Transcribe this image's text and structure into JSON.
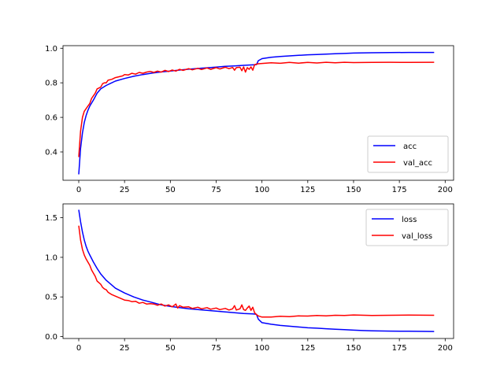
{
  "chart_data": [
    {
      "type": "line",
      "title": "",
      "xlabel": "",
      "ylabel": "",
      "xlim": [
        -8.6,
        204.6
      ],
      "ylim": [
        0.236,
        1.015
      ],
      "xticks": [
        0,
        25,
        50,
        75,
        100,
        125,
        150,
        175,
        200
      ],
      "yticks": [
        0.4,
        0.6,
        0.8,
        1.0
      ],
      "ytick_labels": [
        "0.4",
        "0.6",
        "0.8",
        "1.0"
      ],
      "grid": false,
      "legend_position": "lower-right",
      "series": [
        {
          "name": "acc",
          "color": "#0000ff",
          "points": [
            [
              0,
              0.27
            ],
            [
              1,
              0.42
            ],
            [
              2,
              0.51
            ],
            [
              3,
              0.57
            ],
            [
              4,
              0.61
            ],
            [
              5,
              0.64
            ],
            [
              6,
              0.665
            ],
            [
              8,
              0.7
            ],
            [
              10,
              0.74
            ],
            [
              12,
              0.765
            ],
            [
              15,
              0.785
            ],
            [
              18,
              0.8
            ],
            [
              20,
              0.81
            ],
            [
              25,
              0.825
            ],
            [
              30,
              0.838
            ],
            [
              35,
              0.848
            ],
            [
              40,
              0.856
            ],
            [
              45,
              0.863
            ],
            [
              50,
              0.868
            ],
            [
              55,
              0.874
            ],
            [
              60,
              0.879
            ],
            [
              65,
              0.883
            ],
            [
              70,
              0.887
            ],
            [
              75,
              0.891
            ],
            [
              80,
              0.895
            ],
            [
              85,
              0.898
            ],
            [
              90,
              0.901
            ],
            [
              95,
              0.904
            ],
            [
              97,
              0.905
            ],
            [
              98,
              0.928
            ],
            [
              100,
              0.94
            ],
            [
              105,
              0.948
            ],
            [
              110,
              0.952
            ],
            [
              115,
              0.956
            ],
            [
              120,
              0.959
            ],
            [
              125,
              0.962
            ],
            [
              130,
              0.964
            ],
            [
              135,
              0.966
            ],
            [
              140,
              0.968
            ],
            [
              145,
              0.97
            ],
            [
              150,
              0.972
            ],
            [
              160,
              0.974
            ],
            [
              170,
              0.975
            ],
            [
              180,
              0.976
            ],
            [
              194,
              0.976
            ]
          ]
        },
        {
          "name": "val_acc",
          "color": "#ff0000",
          "points": [
            [
              0,
              0.37
            ],
            [
              1,
              0.52
            ],
            [
              2,
              0.6
            ],
            [
              3,
              0.635
            ],
            [
              4,
              0.65
            ],
            [
              5,
              0.665
            ],
            [
              6,
              0.68
            ],
            [
              7,
              0.71
            ],
            [
              8,
              0.725
            ],
            [
              9,
              0.74
            ],
            [
              10,
              0.765
            ],
            [
              11,
              0.77
            ],
            [
              12,
              0.775
            ],
            [
              13,
              0.795
            ],
            [
              14,
              0.8
            ],
            [
              15,
              0.8
            ],
            [
              16,
              0.815
            ],
            [
              18,
              0.82
            ],
            [
              20,
              0.83
            ],
            [
              22,
              0.835
            ],
            [
              24,
              0.84
            ],
            [
              25,
              0.848
            ],
            [
              27,
              0.845
            ],
            [
              29,
              0.855
            ],
            [
              31,
              0.85
            ],
            [
              33,
              0.86
            ],
            [
              35,
              0.855
            ],
            [
              37,
              0.862
            ],
            [
              39,
              0.866
            ],
            [
              41,
              0.86
            ],
            [
              43,
              0.868
            ],
            [
              45,
              0.862
            ],
            [
              47,
              0.872
            ],
            [
              49,
              0.865
            ],
            [
              51,
              0.874
            ],
            [
              53,
              0.868
            ],
            [
              55,
              0.878
            ],
            [
              57,
              0.872
            ],
            [
              60,
              0.882
            ],
            [
              62,
              0.875
            ],
            [
              65,
              0.884
            ],
            [
              67,
              0.877
            ],
            [
              70,
              0.886
            ],
            [
              72,
              0.878
            ],
            [
              75,
              0.888
            ],
            [
              77,
              0.88
            ],
            [
              80,
              0.89
            ],
            [
              82,
              0.882
            ],
            [
              84,
              0.889
            ],
            [
              85,
              0.873
            ],
            [
              86,
              0.888
            ],
            [
              88,
              0.89
            ],
            [
              89,
              0.87
            ],
            [
              90,
              0.892
            ],
            [
              91,
              0.862
            ],
            [
              92,
              0.888
            ],
            [
              93,
              0.878
            ],
            [
              94,
              0.892
            ],
            [
              95,
              0.873
            ],
            [
              96,
              0.905
            ],
            [
              97,
              0.908
            ],
            [
              98,
              0.91
            ],
            [
              100,
              0.912
            ],
            [
              105,
              0.916
            ],
            [
              110,
              0.913
            ],
            [
              115,
              0.918
            ],
            [
              120,
              0.914
            ],
            [
              125,
              0.918
            ],
            [
              130,
              0.915
            ],
            [
              135,
              0.919
            ],
            [
              140,
              0.916
            ],
            [
              145,
              0.919
            ],
            [
              150,
              0.917
            ],
            [
              160,
              0.918
            ],
            [
              170,
              0.919
            ],
            [
              180,
              0.918
            ],
            [
              194,
              0.919
            ]
          ]
        }
      ]
    },
    {
      "type": "line",
      "title": "",
      "xlabel": "",
      "ylabel": "",
      "xlim": [
        -8.6,
        204.6
      ],
      "ylim": [
        -0.025,
        1.675
      ],
      "xticks": [
        0,
        25,
        50,
        75,
        100,
        125,
        150,
        175,
        200
      ],
      "yticks": [
        0.0,
        0.5,
        1.0,
        1.5
      ],
      "ytick_labels": [
        "0.0",
        "0.5",
        "1.0",
        "1.5"
      ],
      "grid": false,
      "legend_position": "upper-right",
      "series": [
        {
          "name": "loss",
          "color": "#0000ff",
          "points": [
            [
              0,
              1.6
            ],
            [
              1,
              1.45
            ],
            [
              2,
              1.32
            ],
            [
              3,
              1.22
            ],
            [
              4,
              1.14
            ],
            [
              5,
              1.08
            ],
            [
              6,
              1.03
            ],
            [
              8,
              0.94
            ],
            [
              10,
              0.86
            ],
            [
              12,
              0.79
            ],
            [
              15,
              0.71
            ],
            [
              18,
              0.65
            ],
            [
              20,
              0.61
            ],
            [
              25,
              0.55
            ],
            [
              30,
              0.5
            ],
            [
              35,
              0.46
            ],
            [
              40,
              0.43
            ],
            [
              45,
              0.4
            ],
            [
              50,
              0.38
            ],
            [
              55,
              0.365
            ],
            [
              60,
              0.35
            ],
            [
              65,
              0.34
            ],
            [
              70,
              0.33
            ],
            [
              75,
              0.32
            ],
            [
              80,
              0.31
            ],
            [
              85,
              0.3
            ],
            [
              90,
              0.29
            ],
            [
              95,
              0.285
            ],
            [
              97,
              0.28
            ],
            [
              98,
              0.22
            ],
            [
              100,
              0.175
            ],
            [
              105,
              0.155
            ],
            [
              110,
              0.14
            ],
            [
              115,
              0.13
            ],
            [
              120,
              0.12
            ],
            [
              125,
              0.11
            ],
            [
              130,
              0.105
            ],
            [
              135,
              0.098
            ],
            [
              140,
              0.092
            ],
            [
              145,
              0.087
            ],
            [
              150,
              0.08
            ],
            [
              155,
              0.075
            ],
            [
              160,
              0.072
            ],
            [
              170,
              0.068
            ],
            [
              180,
              0.066
            ],
            [
              194,
              0.063
            ]
          ]
        },
        {
          "name": "val_loss",
          "color": "#ff0000",
          "points": [
            [
              0,
              1.4
            ],
            [
              1,
              1.22
            ],
            [
              2,
              1.1
            ],
            [
              3,
              1.03
            ],
            [
              4,
              0.98
            ],
            [
              5,
              0.94
            ],
            [
              6,
              0.9
            ],
            [
              7,
              0.84
            ],
            [
              8,
              0.8
            ],
            [
              9,
              0.76
            ],
            [
              10,
              0.7
            ],
            [
              11,
              0.68
            ],
            [
              12,
              0.66
            ],
            [
              13,
              0.62
            ],
            [
              14,
              0.6
            ],
            [
              15,
              0.59
            ],
            [
              16,
              0.56
            ],
            [
              18,
              0.53
            ],
            [
              20,
              0.51
            ],
            [
              22,
              0.49
            ],
            [
              25,
              0.46
            ],
            [
              27,
              0.455
            ],
            [
              29,
              0.44
            ],
            [
              31,
              0.445
            ],
            [
              33,
              0.42
            ],
            [
              35,
              0.43
            ],
            [
              37,
              0.41
            ],
            [
              39,
              0.415
            ],
            [
              41,
              0.41
            ],
            [
              43,
              0.395
            ],
            [
              45,
              0.41
            ],
            [
              47,
              0.385
            ],
            [
              49,
              0.4
            ],
            [
              51,
              0.375
            ],
            [
              53,
              0.41
            ],
            [
              54,
              0.36
            ],
            [
              55,
              0.39
            ],
            [
              57,
              0.37
            ],
            [
              60,
              0.375
            ],
            [
              62,
              0.355
            ],
            [
              65,
              0.37
            ],
            [
              67,
              0.35
            ],
            [
              70,
              0.365
            ],
            [
              72,
              0.345
            ],
            [
              75,
              0.36
            ],
            [
              77,
              0.34
            ],
            [
              80,
              0.355
            ],
            [
              82,
              0.335
            ],
            [
              84,
              0.35
            ],
            [
              85,
              0.39
            ],
            [
              86,
              0.335
            ],
            [
              88,
              0.35
            ],
            [
              89,
              0.4
            ],
            [
              90,
              0.34
            ],
            [
              91,
              0.33
            ],
            [
              92,
              0.36
            ],
            [
              93,
              0.385
            ],
            [
              94,
              0.33
            ],
            [
              95,
              0.37
            ],
            [
              96,
              0.3
            ],
            [
              97,
              0.275
            ],
            [
              98,
              0.26
            ],
            [
              100,
              0.245
            ],
            [
              105,
              0.245
            ],
            [
              110,
              0.255
            ],
            [
              115,
              0.25
            ],
            [
              120,
              0.26
            ],
            [
              125,
              0.258
            ],
            [
              130,
              0.265
            ],
            [
              135,
              0.26
            ],
            [
              140,
              0.268
            ],
            [
              145,
              0.265
            ],
            [
              150,
              0.272
            ],
            [
              160,
              0.266
            ],
            [
              170,
              0.268
            ],
            [
              180,
              0.27
            ],
            [
              194,
              0.268
            ]
          ]
        }
      ]
    }
  ]
}
